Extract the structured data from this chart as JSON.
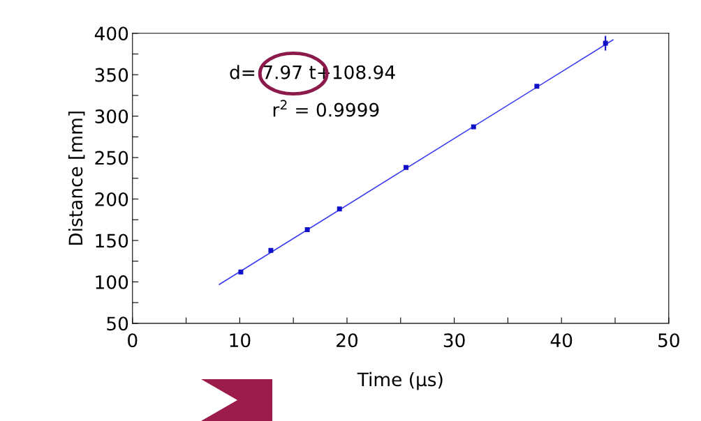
{
  "chart_data": {
    "type": "scatter",
    "xlabel": "Time (µs)",
    "ylabel": "Distance [mm]",
    "xlim": [
      0,
      50
    ],
    "ylim": [
      50,
      400
    ],
    "xticks": [
      0,
      {
        "value": 5,
        "label": null
      },
      10,
      {
        "value": 15,
        "label": null
      },
      20,
      {
        "value": 25,
        "label": null
      },
      30,
      {
        "value": 35,
        "label": null
      },
      40,
      {
        "value": 45,
        "label": null
      },
      50
    ],
    "yticks": [
      50,
      {
        "value": 75,
        "label": null
      },
      100,
      {
        "value": 125,
        "label": null
      },
      150,
      {
        "value": 175,
        "label": null
      },
      200,
      {
        "value": 225,
        "label": null
      },
      250,
      {
        "value": 275,
        "label": null
      },
      300,
      {
        "value": 325,
        "label": null
      },
      350,
      {
        "value": 375,
        "label": null
      },
      400
    ],
    "grid": false,
    "legend": false,
    "series": [
      {
        "marker": "square",
        "color": "#1010c8",
        "x": [
          10.1,
          12.9,
          16.3,
          19.3,
          25.5,
          31.8,
          37.7,
          44.1
        ],
        "values": [
          112,
          138,
          163,
          188,
          238,
          287,
          336,
          388
        ],
        "errors": [
          null,
          null,
          null,
          null,
          null,
          null,
          null,
          8
        ]
      },
      {
        "type": "line",
        "color": "#4040f0",
        "x": [
          8.1,
          44.8
        ],
        "values": [
          97,
          392
        ]
      }
    ],
    "annotations": [
      "d= 7.97 t+108.94",
      "r$^{2}$ = 0.9999"
    ]
  }
}
